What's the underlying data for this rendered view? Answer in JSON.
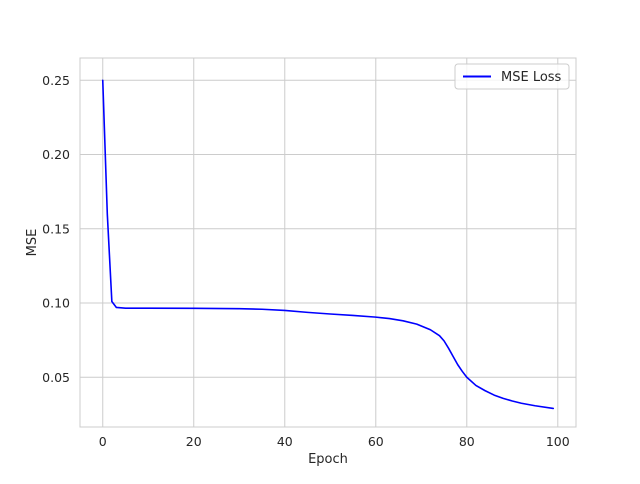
{
  "chart_data": {
    "type": "line",
    "title": "",
    "xlabel": "Epoch",
    "ylabel": "MSE",
    "xlim": [
      -5,
      104
    ],
    "ylim": [
      0.0165,
      0.265
    ],
    "xticks": [
      0,
      20,
      40,
      60,
      80,
      100
    ],
    "yticks": [
      0.05,
      0.1,
      0.15,
      0.2,
      0.25
    ],
    "xtick_labels": [
      "0",
      "20",
      "40",
      "60",
      "80",
      "100"
    ],
    "ytick_labels": [
      "0.05",
      "0.10",
      "0.15",
      "0.20",
      "0.25"
    ],
    "grid": true,
    "legend": {
      "position": "top-right",
      "entries": [
        "MSE Loss"
      ]
    },
    "series": [
      {
        "name": "MSE Loss",
        "color": "#0000ff",
        "x": [
          0,
          1,
          2,
          3,
          5,
          10,
          20,
          30,
          35,
          40,
          45,
          50,
          55,
          60,
          63,
          66,
          69,
          72,
          74,
          75,
          76,
          77,
          78,
          79,
          80,
          82,
          84,
          86,
          88,
          90,
          92,
          95,
          99
        ],
        "y": [
          0.25,
          0.16,
          0.101,
          0.097,
          0.0965,
          0.0965,
          0.0964,
          0.0962,
          0.0958,
          0.095,
          0.0937,
          0.0926,
          0.0916,
          0.0905,
          0.0895,
          0.088,
          0.0858,
          0.082,
          0.078,
          0.0745,
          0.0695,
          0.064,
          0.0585,
          0.054,
          0.05,
          0.0445,
          0.041,
          0.038,
          0.0358,
          0.034,
          0.0325,
          0.0308,
          0.029
        ]
      }
    ]
  }
}
